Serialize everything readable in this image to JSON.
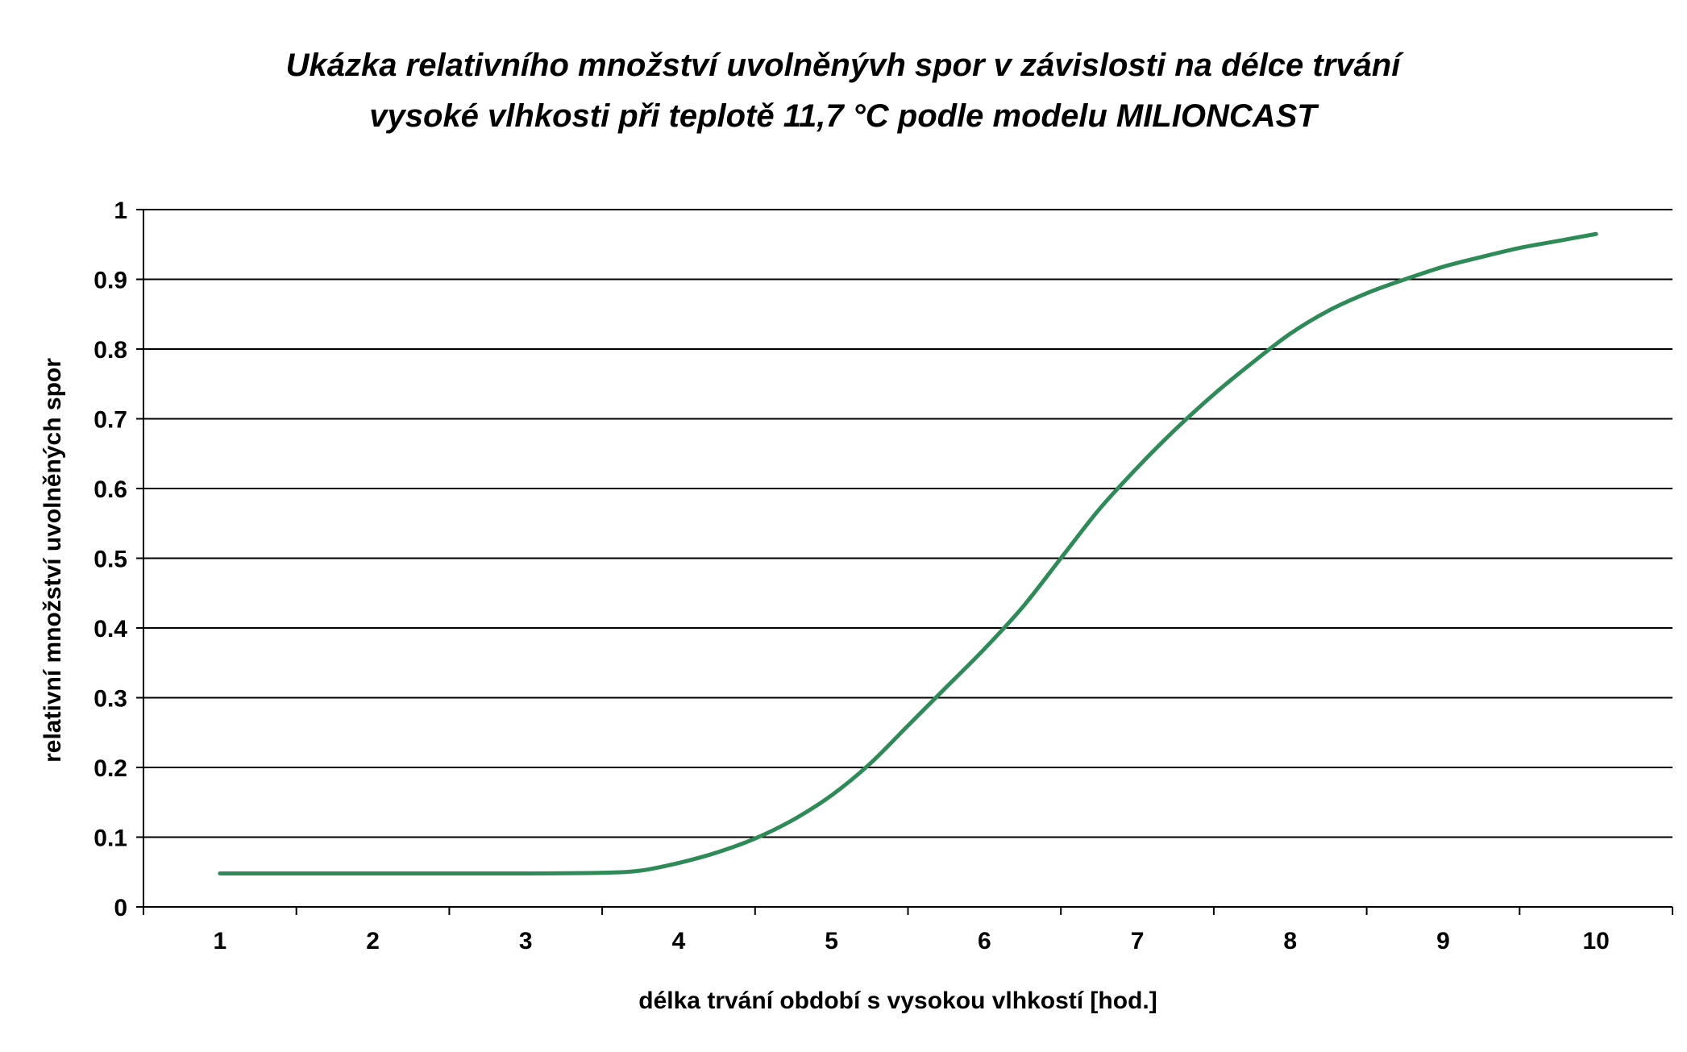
{
  "chart_data": {
    "type": "line",
    "title_lines": [
      "Ukázka relativního množství uvolněnývh spor v závislosti na délce trvání",
      "vysoké vlhkosti při teplotě 11,7 °C podle modelu MILIONCAST"
    ],
    "xlabel": "délka trvání období s vysokou vlhkostí [hod.]",
    "ylabel": "relativní množství uvolněných spor",
    "x_tick_labels": [
      "1",
      "2",
      "3",
      "4",
      "5",
      "6",
      "7",
      "8",
      "9",
      "10"
    ],
    "y_tick_labels": [
      "0",
      "0.1",
      "0.2",
      "0.3",
      "0.4",
      "0.5",
      "0.6",
      "0.7",
      "0.8",
      "0.9",
      "1"
    ],
    "ylim": [
      0,
      1
    ],
    "grid": "horizontal",
    "legend": "none",
    "series": [
      {
        "color": "#2e8b57",
        "x": [
          1,
          1.5,
          2,
          2.5,
          3,
          3.5,
          3.75,
          4,
          4.25,
          4.5,
          4.75,
          5,
          5.25,
          5.5,
          5.75,
          6,
          6.25,
          6.5,
          6.75,
          7,
          7.25,
          7.5,
          7.75,
          8,
          8.25,
          8.5,
          8.75,
          9,
          9.25,
          9.5,
          9.75,
          10
        ],
        "values": [
          0.048,
          0.048,
          0.048,
          0.048,
          0.048,
          0.049,
          0.052,
          0.063,
          0.078,
          0.098,
          0.125,
          0.16,
          0.205,
          0.26,
          0.315,
          0.37,
          0.43,
          0.5,
          0.57,
          0.63,
          0.685,
          0.735,
          0.78,
          0.822,
          0.855,
          0.88,
          0.9,
          0.918,
          0.932,
          0.945,
          0.955,
          0.965
        ]
      }
    ]
  }
}
